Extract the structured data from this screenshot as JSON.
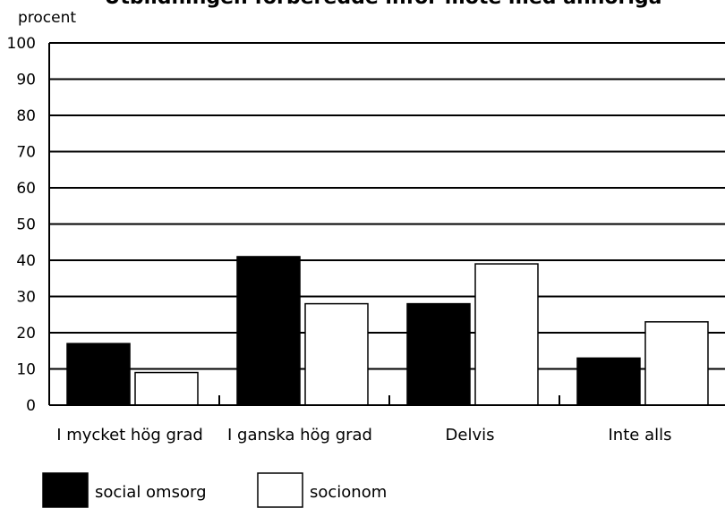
{
  "chart_data": {
    "type": "bar",
    "title": "Utbildningen förberedde inför möte med anhöriga",
    "ylabel": "procent",
    "xlabel": "",
    "ylim": [
      0,
      100
    ],
    "yticks": [
      0,
      10,
      20,
      30,
      40,
      50,
      60,
      70,
      80,
      90,
      100
    ],
    "grid": true,
    "legend_position": "bottom-left",
    "categories": [
      "I mycket hög grad",
      "I ganska hög grad",
      "Delvis",
      "Inte alls"
    ],
    "series": [
      {
        "name": "social omsorg",
        "color": "#000000",
        "values": [
          17,
          41,
          28,
          13
        ]
      },
      {
        "name": "socionom",
        "color": "#ffffff",
        "values": [
          9,
          28,
          39,
          23
        ]
      }
    ]
  }
}
